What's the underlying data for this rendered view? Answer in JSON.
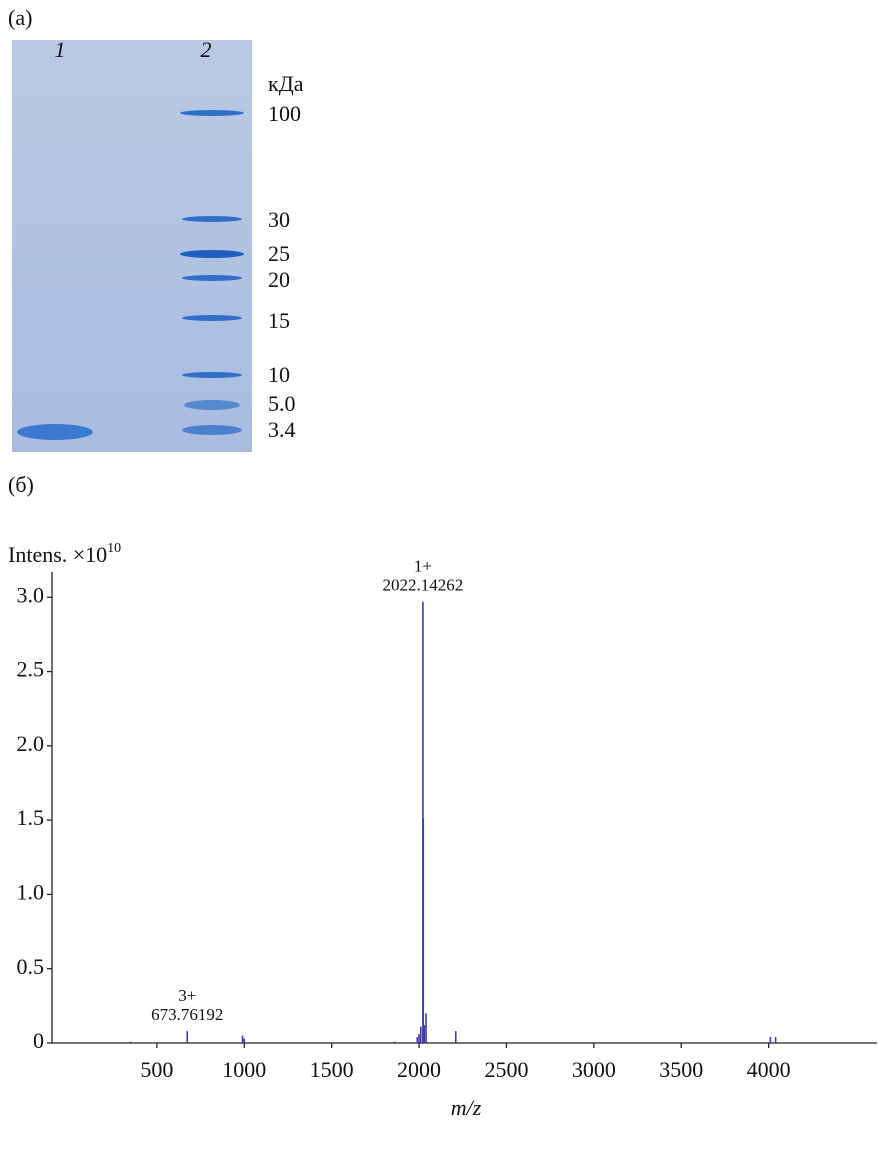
{
  "panel_a": {
    "label": "(а)",
    "lanes": [
      "1",
      "2"
    ],
    "unit": "кДа",
    "markers": [
      "100",
      "30",
      "25",
      "20",
      "15",
      "10",
      "5.0",
      "3.4"
    ]
  },
  "panel_b_label": "(б)",
  "chart_data": {
    "type": "stem",
    "y_label": "Intens. ×10",
    "y_label_exp": "10",
    "x_label": "m/z",
    "xlim": [
      -100,
      4620
    ],
    "ylim": [
      0,
      3.17
    ],
    "xticks": [
      500,
      1000,
      1500,
      2000,
      2500,
      3000,
      3500,
      4000
    ],
    "yticks": [
      0,
      0.5,
      {
        "value": 1,
        "label": "1.0"
      },
      1.5,
      {
        "value": 2,
        "label": "2.0"
      },
      2.5,
      {
        "value": 3,
        "label": "3.0"
      }
    ],
    "series": [
      {
        "color": "#3c3ca8",
        "x": [
          2022.14262,
          673.76192,
          2024,
          2040,
          2030,
          2010,
          2000,
          2210,
          990,
          1000,
          4040,
          4010,
          1860,
          350,
          1990
        ],
        "values": [
          2.97,
          0.08,
          1.51,
          0.2,
          0.12,
          0.11,
          0.06,
          0.08,
          0.05,
          0.03,
          0.04,
          0.04,
          0.01,
          0.01,
          0.04
        ]
      }
    ],
    "annotations": [
      {
        "charge": "1+",
        "mz": "2022.14262"
      },
      {
        "charge": "3+",
        "mz": "673.76192"
      }
    ]
  }
}
